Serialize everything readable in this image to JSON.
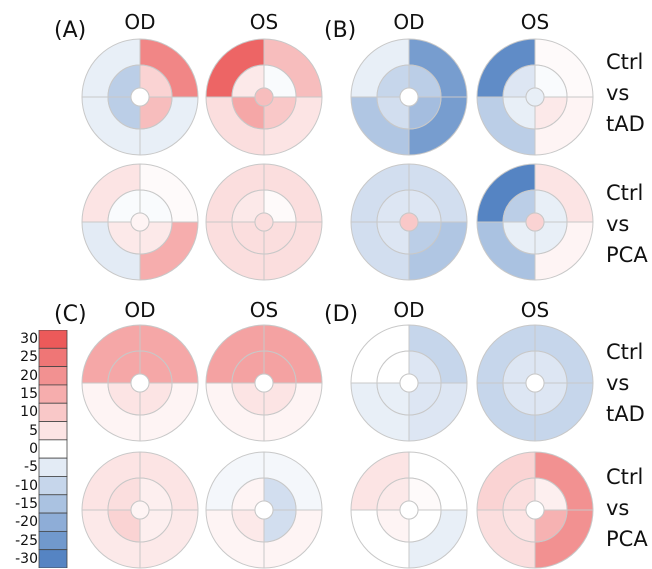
{
  "panels": [
    {
      "label": "(A)",
      "eyes": [
        "OD",
        "OS"
      ],
      "groups": [
        "Ctrl vs tAD",
        "Ctrl vs PCA"
      ],
      "maps": [
        [
          {
            "center": 0,
            "inner": [
              8,
              -12,
              -12,
              12
            ],
            "outer": [
              22,
              -4,
              -4,
              -4
            ]
          },
          {
            "center": 12,
            "inner": [
              -1,
              4,
              16,
              10
            ],
            "outer": [
              12,
              28,
              6,
              5
            ]
          }
        ],
        [
          {
            "center": 2,
            "inner": [
              -1,
              -1,
              4,
              4
            ],
            "outer": [
              1,
              5,
              -5,
              15
            ]
          },
          {
            "center": 6,
            "inner": [
              1,
              4,
              6,
              6
            ],
            "outer": [
              6,
              6,
              6,
              6
            ]
          }
        ]
      ]
    },
    {
      "label": "(B)",
      "eyes": [
        "OD",
        "OS"
      ],
      "groups": [
        "Ctrl vs tAD",
        "Ctrl vs PCA"
      ],
      "maps": [
        [
          {
            "center": 0,
            "inner": [
              -12,
              -10,
              -8,
              -16
            ],
            "outer": [
              -24,
              -4,
              -14,
              -24
            ]
          },
          {
            "center": -4,
            "inner": [
              -1,
              -6,
              -4,
              4
            ],
            "outer": [
              1,
              -28,
              -12,
              2
            ]
          }
        ],
        [
          {
            "center": 10,
            "inner": [
              -6,
              -6,
              -6,
              -12
            ],
            "outer": [
              -8,
              -8,
              -8,
              -14
            ]
          },
          {
            "center": 8,
            "inner": [
              -4,
              -12,
              -4,
              -4
            ],
            "outer": [
              5,
              -30,
              -15,
              2
            ]
          }
        ]
      ]
    },
    {
      "label": "(C)",
      "eyes": [
        "OD",
        "OS"
      ],
      "groups": [
        "",
        ""
      ],
      "maps": [
        [
          {
            "center": 0,
            "inner": [
              16,
              16,
              5,
              5
            ],
            "outer": [
              16,
              16,
              2,
              2
            ]
          },
          {
            "center": 0,
            "inner": [
              17,
              17,
              5,
              5
            ],
            "outer": [
              17,
              17,
              2,
              2
            ]
          }
        ],
        [
          {
            "center": 2,
            "inner": [
              3,
              6,
              8,
              3
            ],
            "outer": [
              5,
              5,
              4,
              4
            ]
          },
          {
            "center": 0,
            "inner": [
              -8,
              2,
              4,
              -8
            ],
            "outer": [
              -2,
              -2,
              2,
              2
            ]
          }
        ]
      ]
    },
    {
      "label": "(D)",
      "eyes": [
        "OD",
        "OS"
      ],
      "groups": [
        "Ctrl vs tAD",
        "Ctrl vs PCA"
      ],
      "maps": [
        [
          {
            "center": 0,
            "inner": [
              -6,
              0,
              -4,
              -6
            ],
            "outer": [
              -10,
              0,
              -4,
              -6
            ]
          },
          {
            "center": 0,
            "inner": [
              -6,
              -6,
              -6,
              -6
            ],
            "outer": [
              -10,
              -10,
              -10,
              -10
            ]
          }
        ],
        [
          {
            "center": 0,
            "inner": [
              1,
              4,
              2,
              0
            ],
            "outer": [
              0,
              5,
              0,
              -4
            ]
          },
          {
            "center": 0,
            "inner": [
              3,
              6,
              5,
              14
            ],
            "outer": [
              20,
              8,
              6,
              20
            ]
          }
        ]
      ]
    }
  ],
  "color_scale": {
    "ticks": [
      "30",
      "25",
      "20",
      "15",
      "10",
      "5",
      "0",
      "-5",
      "-10",
      "-15",
      "-20",
      "-25",
      "-30"
    ],
    "values": [
      30,
      25,
      20,
      15,
      10,
      5,
      0,
      -5,
      -10,
      -15,
      -20,
      -25,
      -30
    ],
    "range": [
      -30,
      30
    ],
    "positive_color": "#ec5a5a",
    "negative_color": "#5584c3",
    "zero_color": "#ffffff"
  }
}
